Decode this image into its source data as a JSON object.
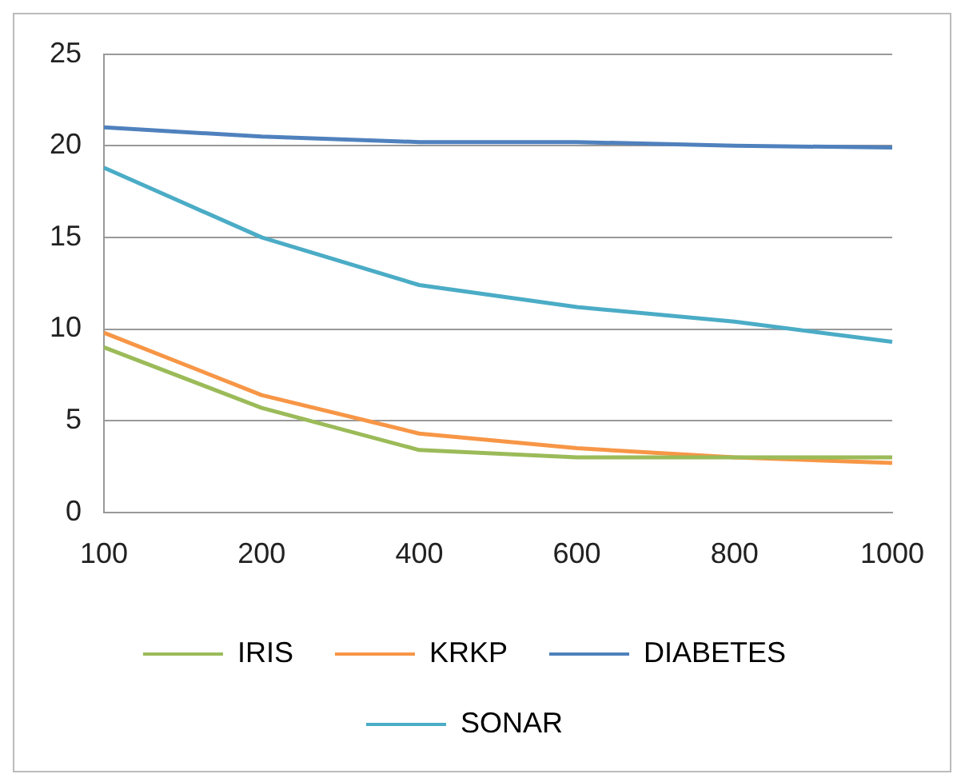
{
  "chart_data": {
    "type": "line",
    "categories": [
      "100",
      "200",
      "400",
      "600",
      "800",
      "1000"
    ],
    "series": [
      {
        "name": "IRIS",
        "color": "#9bbb59",
        "values": [
          9.0,
          5.7,
          3.4,
          3.0,
          3.0,
          3.0
        ]
      },
      {
        "name": "KRKP",
        "color": "#f79646",
        "values": [
          9.8,
          6.4,
          4.3,
          3.5,
          3.0,
          2.7
        ]
      },
      {
        "name": "DIABETES",
        "color": "#4f81bd",
        "values": [
          21.0,
          20.5,
          20.2,
          20.2,
          20.0,
          19.9
        ]
      },
      {
        "name": "SONAR",
        "color": "#4bacc6",
        "values": [
          18.8,
          15.0,
          12.4,
          11.2,
          10.4,
          9.3
        ]
      }
    ],
    "ylim": [
      0,
      25
    ],
    "yticks": [
      0,
      5,
      10,
      15,
      20,
      25
    ],
    "grid": "y",
    "legend": "bottom",
    "marker": "none",
    "line_style": "solid"
  }
}
